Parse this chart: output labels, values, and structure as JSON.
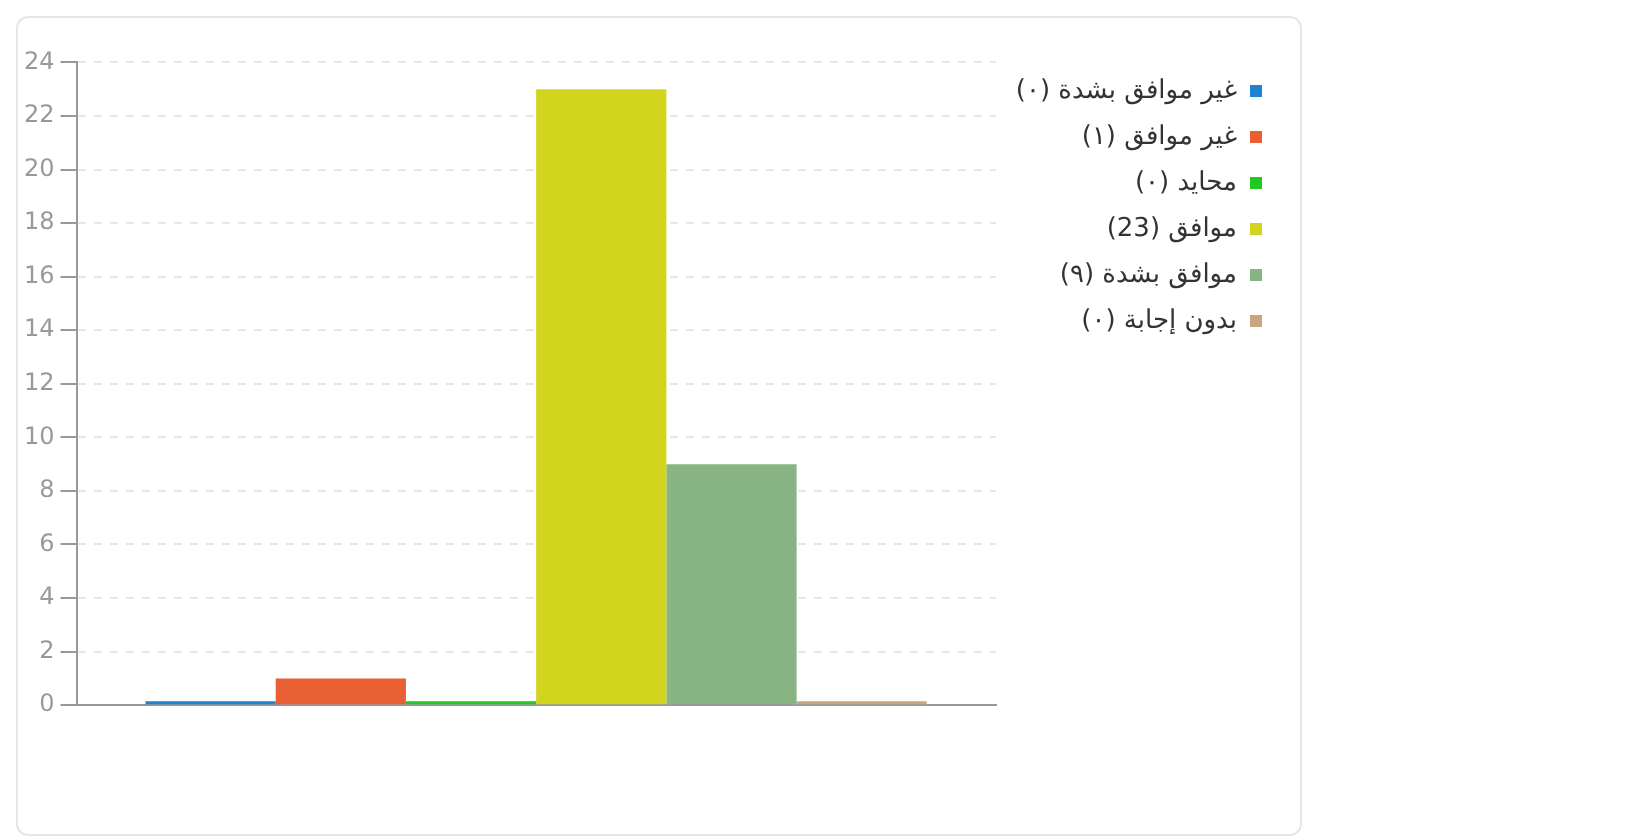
{
  "chart_data": {
    "type": "bar",
    "categories": [
      null
    ],
    "series": [
      {
        "name": "غير موافق بشدة (٠)",
        "color": "#1f83d0",
        "values": [
          0
        ]
      },
      {
        "name": "غير موافق (١)",
        "color": "#e85f33",
        "values": [
          1
        ]
      },
      {
        "name": "محايد (٠)",
        "color": "#22c922",
        "values": [
          0
        ]
      },
      {
        "name": "موافق (23)",
        "color": "#d3d41d",
        "values": [
          23
        ]
      },
      {
        "name": "موافق بشدة (٩)",
        "color": "#88b383",
        "values": [
          9
        ]
      },
      {
        "name": "بدون إجابة (٠)",
        "color": "#c9a67e",
        "values": [
          0
        ]
      }
    ],
    "ylim": [
      0,
      24
    ],
    "yticks": [
      0,
      2,
      4,
      6,
      8,
      10,
      12,
      14,
      16,
      18,
      20,
      22,
      24
    ],
    "grid": "y",
    "legend": "right"
  }
}
